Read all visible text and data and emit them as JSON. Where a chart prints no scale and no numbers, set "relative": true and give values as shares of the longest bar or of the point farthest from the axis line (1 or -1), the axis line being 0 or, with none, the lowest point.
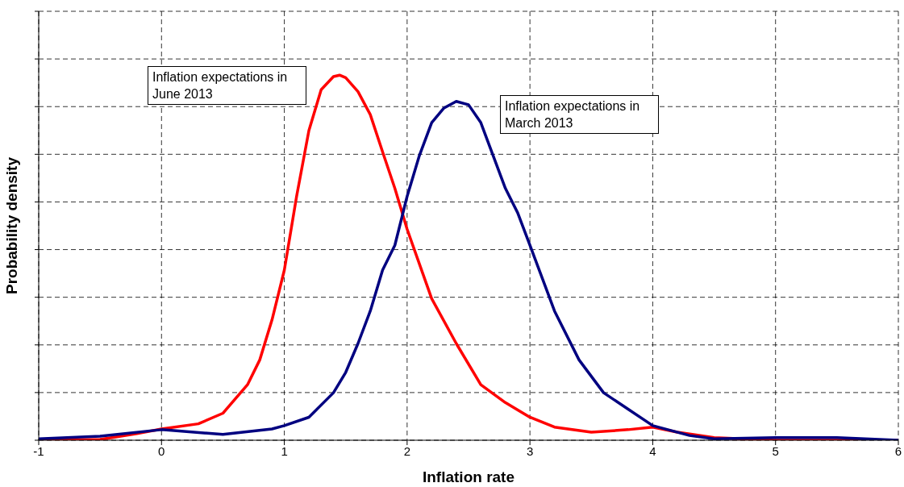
{
  "chart_data": {
    "type": "line",
    "xlabel": "Inflation rate",
    "ylabel": "Probability density",
    "relative": true,
    "xlim": [
      -1,
      6
    ],
    "xticks": [
      -1,
      0,
      1,
      2,
      3,
      4,
      5,
      6
    ],
    "grid": true,
    "legend": false,
    "marker": "none",
    "line_style": "solid",
    "series": [
      {
        "name": "Inflation expectations in June 2013",
        "color": "#ff0000",
        "x": [
          -1,
          -0.5,
          -0.2,
          0,
          0.3,
          0.5,
          0.7,
          0.8,
          0.9,
          1,
          1.1,
          1.2,
          1.3,
          1.4,
          1.45,
          1.5,
          1.6,
          1.7,
          1.8,
          1.9,
          2,
          2.2,
          2.4,
          2.6,
          2.8,
          3,
          3.2,
          3.5,
          3.8,
          4,
          4.2,
          4.5,
          5,
          6
        ],
        "values": [
          0,
          0.002,
          0.018,
          0.031,
          0.045,
          0.074,
          0.152,
          0.22,
          0.33,
          0.466,
          0.668,
          0.848,
          0.96,
          0.996,
          1,
          0.993,
          0.955,
          0.892,
          0.79,
          0.69,
          0.578,
          0.388,
          0.265,
          0.152,
          0.103,
          0.063,
          0.036,
          0.022,
          0.029,
          0.036,
          0.022,
          0.007,
          0,
          0
        ]
      },
      {
        "name": "Inflation expectations in March 2013",
        "color": "#000080",
        "x": [
          -1,
          -0.5,
          0,
          0.5,
          0.9,
          1,
          1.2,
          1.4,
          1.5,
          1.6,
          1.7,
          1.8,
          1.9,
          2,
          2.1,
          2.2,
          2.3,
          2.4,
          2.5,
          2.6,
          2.7,
          2.8,
          2.9,
          3,
          3.2,
          3.4,
          3.6,
          3.8,
          4,
          4.3,
          4.5,
          5,
          5.5,
          6
        ],
        "values": [
          0.004,
          0.011,
          0.029,
          0.016,
          0.031,
          0.04,
          0.063,
          0.13,
          0.186,
          0.265,
          0.354,
          0.466,
          0.534,
          0.668,
          0.78,
          0.87,
          0.91,
          0.928,
          0.919,
          0.87,
          0.78,
          0.69,
          0.623,
          0.534,
          0.354,
          0.22,
          0.13,
          0.085,
          0.04,
          0.013,
          0.004,
          0.007,
          0.007,
          0
        ]
      }
    ]
  }
}
